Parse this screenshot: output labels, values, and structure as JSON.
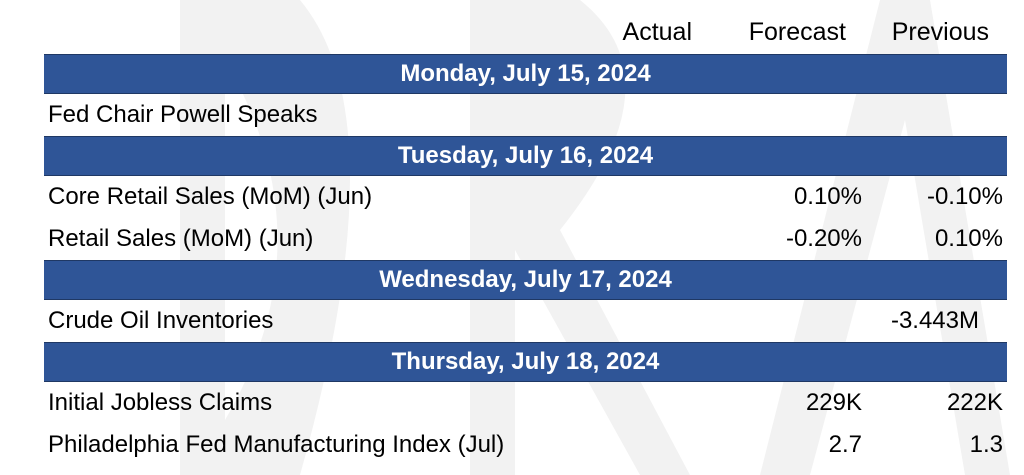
{
  "header": {
    "actual": "Actual",
    "forecast": "Forecast",
    "previous": "Previous"
  },
  "days": [
    {
      "date": "Monday, July 15, 2024",
      "events": [
        {
          "name": "Fed Chair Powell Speaks",
          "actual": "",
          "forecast": "",
          "previous": ""
        }
      ]
    },
    {
      "date": "Tuesday, July 16, 2024",
      "events": [
        {
          "name": "Core Retail Sales (MoM) (Jun)",
          "actual": "",
          "forecast": "0.10%",
          "previous": "-0.10%"
        },
        {
          "name": "Retail Sales (MoM) (Jun)",
          "actual": "",
          "forecast": "-0.20%",
          "previous": "0.10%"
        }
      ]
    },
    {
      "date": "Wednesday, July 17, 2024",
      "events": [
        {
          "name": "Crude Oil Inventories",
          "actual": "",
          "forecast": "",
          "previous": "-3.443M"
        }
      ]
    },
    {
      "date": "Thursday, July 18, 2024",
      "events": [
        {
          "name": "Initial Jobless Claims",
          "actual": "",
          "forecast": "229K",
          "previous": "222K"
        },
        {
          "name": "Philadelphia Fed Manufacturing Index (Jul)",
          "actual": "",
          "forecast": "2.7",
          "previous": "1.3"
        }
      ]
    }
  ],
  "colors": {
    "day_band": "#2f5597",
    "day_text": "#ffffff",
    "text": "#000000"
  }
}
